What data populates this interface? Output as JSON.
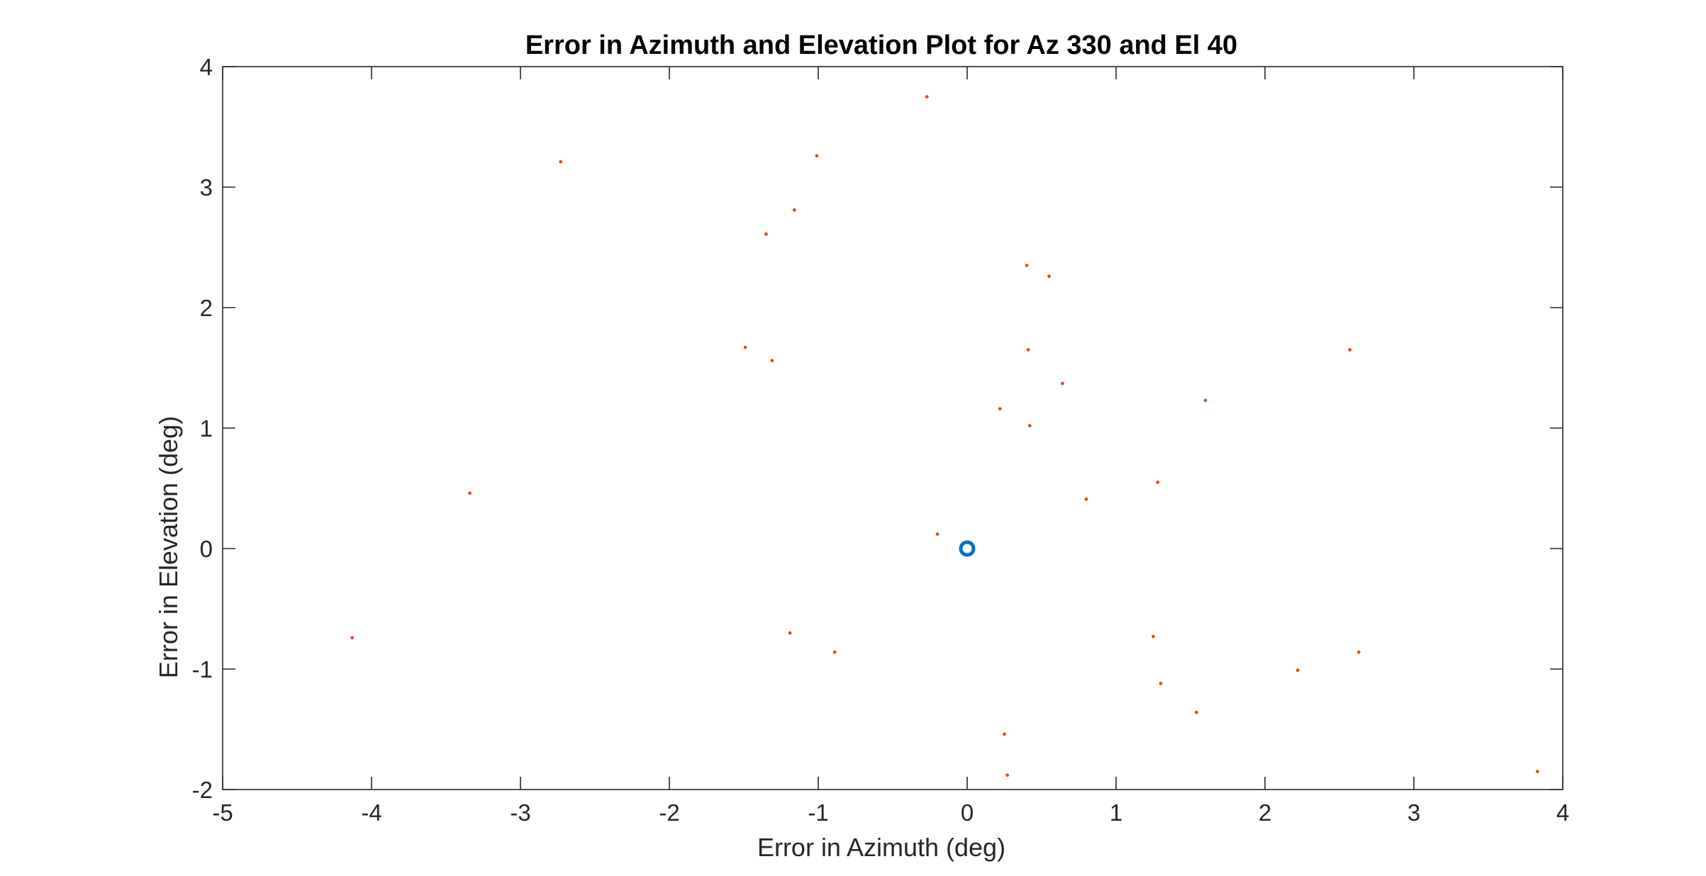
{
  "colors": {
    "reference_marker": "#0072BD",
    "error_points": "#D95319",
    "axes": "#262626",
    "background": "#FFFFFF"
  },
  "chart_data": {
    "type": "scatter",
    "title": "Error in Azimuth and Elevation Plot for Az 330 and El 40",
    "xlabel": "Error in Azimuth (deg)",
    "ylabel": "Error in Elevation (deg)",
    "xlim": [
      -5,
      4
    ],
    "ylim": [
      -2,
      4
    ],
    "xticks": [
      -5,
      -4,
      -3,
      -2,
      -1,
      0,
      1,
      2,
      3,
      4
    ],
    "yticks": [
      -2,
      -1,
      0,
      1,
      2,
      3,
      4
    ],
    "grid": false,
    "legend": "none",
    "series": [
      {
        "marker": "circle",
        "color": "#0072BD",
        "points": [
          [
            0,
            0
          ]
        ]
      },
      {
        "marker": "dot",
        "color": "#D95319",
        "points": [
          [
            -0.27,
            3.75
          ],
          [
            -1.01,
            3.26
          ],
          [
            -2.73,
            3.21
          ],
          [
            -1.16,
            2.81
          ],
          [
            -1.35,
            2.61
          ],
          [
            0.4,
            2.35
          ],
          [
            0.55,
            2.26
          ],
          [
            -1.49,
            1.67
          ],
          [
            -1.31,
            1.56
          ],
          [
            0.41,
            1.65
          ],
          [
            2.57,
            1.65
          ],
          [
            0.64,
            1.37
          ],
          [
            1.6,
            1.23
          ],
          [
            0.22,
            1.16
          ],
          [
            0.42,
            1.02
          ],
          [
            -3.34,
            0.46
          ],
          [
            1.28,
            0.55
          ],
          [
            0.8,
            0.41
          ],
          [
            -0.2,
            0.12
          ],
          [
            -4.13,
            -0.74
          ],
          [
            -1.19,
            -0.7
          ],
          [
            -0.89,
            -0.86
          ],
          [
            1.25,
            -0.73
          ],
          [
            2.63,
            -0.86
          ],
          [
            2.22,
            -1.01
          ],
          [
            1.3,
            -1.12
          ],
          [
            1.54,
            -1.36
          ],
          [
            0.25,
            -1.54
          ],
          [
            0.27,
            -1.88
          ],
          [
            3.83,
            -1.85
          ]
        ]
      }
    ]
  }
}
